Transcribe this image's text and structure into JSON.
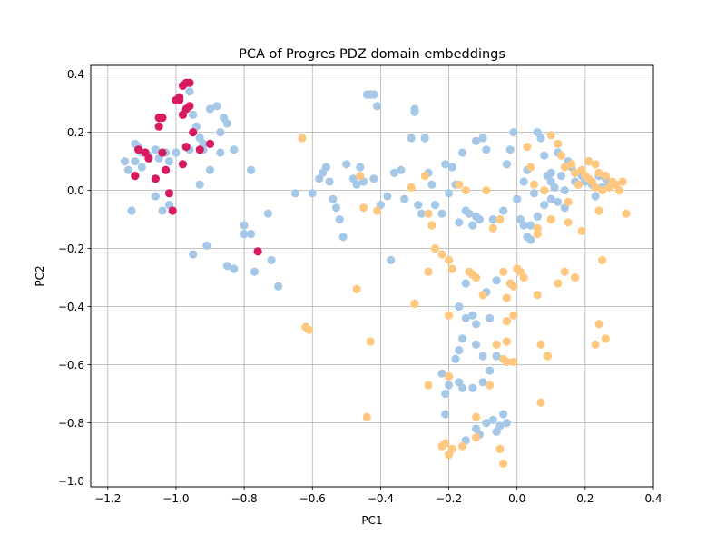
{
  "chart_data": {
    "type": "scatter",
    "title": "PCA of Progres PDZ domain embeddings",
    "xlabel": "PC1",
    "ylabel": "PC2",
    "xlim": [
      -1.25,
      0.4
    ],
    "ylim": [
      -1.02,
      0.43
    ],
    "xticks": [
      -1.2,
      -1.0,
      -0.8,
      -0.6,
      -0.4,
      -0.2,
      0.0,
      0.2,
      0.4
    ],
    "xtick_labels": [
      "−1.2",
      "−1.0",
      "−0.8",
      "−0.6",
      "−0.4",
      "−0.2",
      "0.0",
      "0.2",
      "0.4"
    ],
    "yticks": [
      -1.0,
      -0.8,
      -0.6,
      -0.4,
      -0.2,
      0.0,
      0.2,
      0.4
    ],
    "ytick_labels": [
      "−1.0",
      "−0.8",
      "−0.6",
      "−0.4",
      "−0.2",
      "0.0",
      "0.2",
      "0.4"
    ],
    "grid": true,
    "legend": "none",
    "series": [
      {
        "color": "#a6c8e8",
        "points": [
          [
            -1.15,
            0.1
          ],
          [
            -1.14,
            0.07
          ],
          [
            -1.12,
            0.16
          ],
          [
            -1.11,
            0.15
          ],
          [
            -1.1,
            0.13
          ],
          [
            -1.12,
            0.1
          ],
          [
            -1.1,
            0.08
          ],
          [
            -1.08,
            0.12
          ],
          [
            -1.06,
            0.14
          ],
          [
            -1.05,
            0.11
          ],
          [
            -1.03,
            0.13
          ],
          [
            -1.02,
            0.1
          ],
          [
            -1.13,
            -0.07
          ],
          [
            -1.06,
            -0.02
          ],
          [
            -1.04,
            -0.07
          ],
          [
            -1.02,
            -0.05
          ],
          [
            -0.99,
            0.32
          ],
          [
            -0.96,
            0.34
          ],
          [
            -0.95,
            0.26
          ],
          [
            -0.94,
            0.22
          ],
          [
            -0.93,
            0.18
          ],
          [
            -0.92,
            0.16
          ],
          [
            -0.9,
            0.28
          ],
          [
            -0.88,
            0.29
          ],
          [
            -0.86,
            0.25
          ],
          [
            -0.85,
            0.23
          ],
          [
            -0.87,
            0.2
          ],
          [
            -0.83,
            0.14
          ],
          [
            -0.87,
            0.13
          ],
          [
            -0.92,
            0.14
          ],
          [
            -0.96,
            0.14
          ],
          [
            -1.0,
            0.13
          ],
          [
            -0.93,
            0.02
          ],
          [
            -0.9,
            0.07
          ],
          [
            -0.95,
            -0.22
          ],
          [
            -0.91,
            -0.19
          ],
          [
            -0.85,
            -0.26
          ],
          [
            -0.83,
            -0.27
          ],
          [
            -0.8,
            -0.15
          ],
          [
            -0.78,
            -0.15
          ],
          [
            -0.8,
            -0.12
          ],
          [
            -0.78,
            0.07
          ],
          [
            -0.77,
            -0.28
          ],
          [
            -0.72,
            -0.24
          ],
          [
            -0.7,
            -0.33
          ],
          [
            -0.73,
            -0.08
          ],
          [
            -0.65,
            -0.01
          ],
          [
            -0.6,
            -0.01
          ],
          [
            -0.58,
            0.04
          ],
          [
            -0.57,
            0.06
          ],
          [
            -0.56,
            0.08
          ],
          [
            -0.55,
            0.03
          ],
          [
            -0.54,
            -0.03
          ],
          [
            -0.53,
            -0.06
          ],
          [
            -0.52,
            -0.1
          ],
          [
            -0.51,
            -0.16
          ],
          [
            -0.5,
            0.09
          ],
          [
            -0.48,
            0.04
          ],
          [
            -0.47,
            0.02
          ],
          [
            -0.46,
            0.08
          ],
          [
            -0.45,
            0.03
          ],
          [
            -0.44,
            0.33
          ],
          [
            -0.43,
            0.33
          ],
          [
            -0.42,
            0.33
          ],
          [
            -0.41,
            0.29
          ],
          [
            -0.42,
            0.04
          ],
          [
            -0.4,
            -0.05
          ],
          [
            -0.38,
            -0.02
          ],
          [
            -0.36,
            0.06
          ],
          [
            -0.34,
            0.07
          ],
          [
            -0.33,
            -0.03
          ],
          [
            -0.31,
            0.18
          ],
          [
            -0.3,
            0.28
          ],
          [
            -0.3,
            0.27
          ],
          [
            -0.29,
            -0.05
          ],
          [
            -0.28,
            -0.08
          ],
          [
            -0.27,
            0.18
          ],
          [
            -0.26,
            0.06
          ],
          [
            -0.25,
            0.02
          ],
          [
            -0.24,
            -0.05
          ],
          [
            -0.22,
            -0.08
          ],
          [
            -0.21,
            0.09
          ],
          [
            -0.2,
            -0.01
          ],
          [
            -0.19,
            0.08
          ],
          [
            -0.18,
            0.02
          ],
          [
            -0.17,
            -0.11
          ],
          [
            -0.16,
            0.13
          ],
          [
            -0.15,
            -0.07
          ],
          [
            -0.14,
            -0.08
          ],
          [
            -0.13,
            -0.12
          ],
          [
            -0.12,
            -0.09
          ],
          [
            -0.11,
            -0.1
          ],
          [
            -0.12,
            0.17
          ],
          [
            -0.1,
            0.18
          ],
          [
            -0.09,
            0.14
          ],
          [
            -0.07,
            -0.1
          ],
          [
            -0.04,
            -0.07
          ],
          [
            -0.03,
            0.09
          ],
          [
            -0.02,
            0.14
          ],
          [
            -0.01,
            0.2
          ],
          [
            -0.06,
            -0.31
          ],
          [
            -0.09,
            -0.35
          ],
          [
            -0.15,
            -0.32
          ],
          [
            -0.17,
            -0.4
          ],
          [
            -0.15,
            -0.44
          ],
          [
            -0.13,
            -0.43
          ],
          [
            -0.12,
            -0.46
          ],
          [
            -0.08,
            -0.44
          ],
          [
            -0.12,
            -0.53
          ],
          [
            -0.1,
            -0.57
          ],
          [
            -0.17,
            -0.55
          ],
          [
            -0.16,
            -0.51
          ],
          [
            -0.18,
            -0.58
          ],
          [
            -0.17,
            -0.66
          ],
          [
            -0.2,
            -0.67
          ],
          [
            -0.21,
            -0.7
          ],
          [
            -0.21,
            -0.77
          ],
          [
            -0.22,
            -0.63
          ],
          [
            -0.16,
            -0.68
          ],
          [
            -0.13,
            -0.68
          ],
          [
            -0.1,
            -0.66
          ],
          [
            -0.12,
            -0.82
          ],
          [
            -0.11,
            -0.84
          ],
          [
            -0.15,
            -0.86
          ],
          [
            -0.09,
            -0.8
          ],
          [
            -0.07,
            -0.79
          ],
          [
            -0.05,
            -0.81
          ],
          [
            -0.06,
            -0.83
          ],
          [
            -0.04,
            -0.77
          ],
          [
            -0.03,
            -0.8
          ],
          [
            -0.08,
            -0.62
          ],
          [
            -0.06,
            -0.57
          ],
          [
            -0.37,
            -0.24
          ],
          [
            0.0,
            -0.03
          ],
          [
            0.01,
            -0.1
          ],
          [
            0.02,
            0.03
          ],
          [
            0.03,
            0.07
          ],
          [
            0.04,
            -0.12
          ],
          [
            0.05,
            -0.01
          ],
          [
            0.06,
            0.2
          ],
          [
            0.07,
            0.18
          ],
          [
            0.08,
            0.12
          ],
          [
            0.09,
            0.05
          ],
          [
            0.1,
            -0.03
          ],
          [
            0.11,
            0.01
          ],
          [
            0.12,
            0.13
          ],
          [
            0.13,
            0.05
          ],
          [
            0.14,
            0.0
          ],
          [
            0.15,
            0.1
          ],
          [
            0.16,
            0.08
          ],
          [
            0.17,
            0.03
          ],
          [
            0.18,
            0.02
          ],
          [
            0.19,
            0.05
          ],
          [
            0.2,
            0.03
          ],
          [
            0.21,
            0.1
          ],
          [
            0.22,
            0.02
          ],
          [
            0.23,
            -0.02
          ],
          [
            0.24,
            0.05
          ],
          [
            0.25,
            0.01
          ],
          [
            0.26,
            0.04
          ],
          [
            0.27,
            0.02
          ],
          [
            0.14,
            -0.06
          ],
          [
            0.12,
            -0.04
          ],
          [
            0.1,
            0.06
          ],
          [
            0.08,
            -0.05
          ],
          [
            0.06,
            -0.09
          ],
          [
            0.04,
            -0.17
          ],
          [
            0.03,
            -0.16
          ],
          [
            0.02,
            -0.12
          ],
          [
            0.1,
            0.03
          ]
        ]
      },
      {
        "color": "#ffc880",
        "points": [
          [
            -0.63,
            0.18
          ],
          [
            -0.62,
            -0.47
          ],
          [
            -0.61,
            -0.48
          ],
          [
            -0.46,
            0.05
          ],
          [
            -0.45,
            -0.06
          ],
          [
            -0.41,
            -0.07
          ],
          [
            -0.47,
            -0.34
          ],
          [
            -0.43,
            -0.52
          ],
          [
            -0.44,
            -0.78
          ],
          [
            -0.31,
            0.01
          ],
          [
            -0.3,
            -0.39
          ],
          [
            -0.27,
            0.05
          ],
          [
            -0.26,
            -0.08
          ],
          [
            -0.25,
            -0.12
          ],
          [
            -0.24,
            -0.2
          ],
          [
            -0.22,
            -0.22
          ],
          [
            -0.26,
            -0.28
          ],
          [
            -0.2,
            -0.24
          ],
          [
            -0.2,
            -0.43
          ],
          [
            -0.19,
            -0.27
          ],
          [
            -0.26,
            -0.67
          ],
          [
            -0.2,
            -0.64
          ],
          [
            -0.17,
            0.02
          ],
          [
            -0.15,
            0.0
          ],
          [
            -0.14,
            -0.28
          ],
          [
            -0.12,
            -0.3
          ],
          [
            -0.13,
            -0.29
          ],
          [
            -0.1,
            -0.36
          ],
          [
            -0.09,
            0.0
          ],
          [
            -0.07,
            -0.13
          ],
          [
            -0.05,
            -0.1
          ],
          [
            -0.04,
            -0.28
          ],
          [
            -0.03,
            -0.37
          ],
          [
            -0.02,
            -0.32
          ],
          [
            -0.01,
            -0.33
          ],
          [
            -0.01,
            -0.43
          ],
          [
            -0.03,
            -0.52
          ],
          [
            -0.04,
            -0.58
          ],
          [
            -0.03,
            -0.59
          ],
          [
            -0.01,
            -0.59
          ],
          [
            0.0,
            -0.27
          ],
          [
            0.01,
            -0.28
          ],
          [
            0.02,
            -0.3
          ],
          [
            0.03,
            0.15
          ],
          [
            0.04,
            0.08
          ],
          [
            0.05,
            0.02
          ],
          [
            0.06,
            -0.15
          ],
          [
            0.06,
            -0.36
          ],
          [
            0.07,
            -0.53
          ],
          [
            0.08,
            0.0
          ],
          [
            0.1,
            0.19
          ],
          [
            0.12,
            0.16
          ],
          [
            0.13,
            0.12
          ],
          [
            0.14,
            0.08
          ],
          [
            0.15,
            -0.04
          ],
          [
            0.16,
            0.09
          ],
          [
            0.17,
            0.06
          ],
          [
            0.18,
            0.02
          ],
          [
            0.19,
            0.07
          ],
          [
            0.2,
            0.05
          ],
          [
            0.21,
            0.04
          ],
          [
            0.22,
            0.03
          ],
          [
            0.23,
            0.01
          ],
          [
            0.24,
            0.06
          ],
          [
            0.25,
            0.0
          ],
          [
            0.26,
            0.05
          ],
          [
            0.27,
            0.01
          ],
          [
            0.28,
            0.03
          ],
          [
            0.29,
            0.02
          ],
          [
            0.3,
            0.0
          ],
          [
            0.31,
            0.03
          ],
          [
            0.32,
            -0.08
          ],
          [
            0.21,
            0.1
          ],
          [
            0.23,
            0.09
          ],
          [
            0.24,
            -0.07
          ],
          [
            0.25,
            -0.24
          ],
          [
            0.24,
            -0.46
          ],
          [
            0.23,
            -0.53
          ],
          [
            0.26,
            -0.51
          ],
          [
            0.19,
            -0.14
          ],
          [
            0.15,
            -0.11
          ],
          [
            0.06,
            -0.13
          ],
          [
            0.1,
            -0.1
          ],
          [
            -0.22,
            -0.88
          ],
          [
            -0.21,
            -0.87
          ],
          [
            -0.19,
            -0.89
          ],
          [
            -0.2,
            -0.91
          ],
          [
            -0.16,
            -0.88
          ],
          [
            -0.12,
            -0.85
          ],
          [
            -0.05,
            -0.89
          ],
          [
            -0.04,
            -0.94
          ],
          [
            -0.12,
            -0.78
          ],
          [
            -0.08,
            -0.67
          ],
          [
            0.07,
            -0.73
          ],
          [
            -0.06,
            -0.53
          ],
          [
            -0.03,
            -0.45
          ],
          [
            0.09,
            -0.57
          ],
          [
            0.12,
            -0.32
          ],
          [
            0.14,
            -0.28
          ],
          [
            0.17,
            -0.3
          ]
        ]
      },
      {
        "color": "#d81b60",
        "points": [
          [
            -1.11,
            0.14
          ],
          [
            -1.09,
            0.13
          ],
          [
            -1.08,
            0.11
          ],
          [
            -1.12,
            0.05
          ],
          [
            -1.05,
            0.25
          ],
          [
            -1.04,
            0.25
          ],
          [
            -1.05,
            0.22
          ],
          [
            -1.04,
            0.13
          ],
          [
            -1.03,
            0.07
          ],
          [
            -1.01,
            -0.07
          ],
          [
            -1.02,
            -0.01
          ],
          [
            -1.0,
            0.31
          ],
          [
            -0.99,
            0.32
          ],
          [
            -0.98,
            0.36
          ],
          [
            -0.97,
            0.37
          ],
          [
            -0.96,
            0.37
          ],
          [
            -0.97,
            0.28
          ],
          [
            -0.96,
            0.29
          ],
          [
            -0.98,
            0.26
          ],
          [
            -0.95,
            0.2
          ],
          [
            -0.97,
            0.15
          ],
          [
            -0.93,
            0.14
          ],
          [
            -0.9,
            0.16
          ],
          [
            -0.98,
            0.09
          ],
          [
            -0.76,
            -0.21
          ],
          [
            -1.06,
            0.04
          ],
          [
            -0.99,
            0.31
          ]
        ]
      }
    ]
  }
}
